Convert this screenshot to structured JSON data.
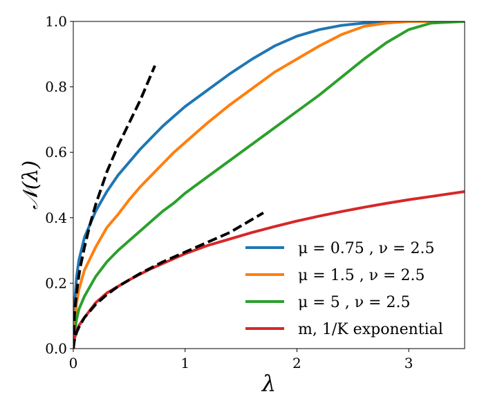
{
  "chart_data": {
    "type": "line",
    "title": "",
    "xlabel": "λ",
    "ylabel": "𝒩(λ)",
    "xlim": [
      0,
      3.5
    ],
    "ylim": [
      0,
      1.0
    ],
    "xticks": [
      0,
      1,
      2,
      3
    ],
    "xtick_labels": [
      "0",
      "1",
      "2",
      "3"
    ],
    "yticks": [
      0.0,
      0.2,
      0.4,
      0.6,
      0.8,
      1.0
    ],
    "ytick_labels": [
      "0.0",
      "0.2",
      "0.4",
      "0.6",
      "0.8",
      "1.0"
    ],
    "grid": false,
    "legend_position": "bottom-right",
    "series": [
      {
        "name": "μ = 0.75 , ν = 2.5",
        "color": "#1f77b4",
        "style": "solid",
        "x": [
          0,
          0.01,
          0.03,
          0.05,
          0.1,
          0.2,
          0.3,
          0.4,
          0.5,
          0.6,
          0.7,
          0.8,
          0.9,
          1.0,
          1.2,
          1.4,
          1.6,
          1.8,
          2.0,
          2.2,
          2.4,
          2.6,
          2.8,
          3.0,
          3.2,
          3.5
        ],
        "y": [
          0,
          0.13,
          0.22,
          0.27,
          0.34,
          0.42,
          0.48,
          0.53,
          0.57,
          0.61,
          0.645,
          0.68,
          0.71,
          0.74,
          0.79,
          0.84,
          0.885,
          0.925,
          0.955,
          0.975,
          0.988,
          0.995,
          0.998,
          1.0,
          1.0,
          1.0
        ]
      },
      {
        "name": "μ = 1.5 , ν = 2.5",
        "color": "#ff7f0e",
        "style": "solid",
        "x": [
          0,
          0.01,
          0.03,
          0.05,
          0.1,
          0.2,
          0.3,
          0.4,
          0.5,
          0.6,
          0.7,
          0.8,
          0.9,
          1.0,
          1.2,
          1.4,
          1.6,
          1.8,
          2.0,
          2.2,
          2.4,
          2.6,
          2.8,
          3.0,
          3.2,
          3.5
        ],
        "y": [
          0,
          0.08,
          0.14,
          0.18,
          0.24,
          0.31,
          0.37,
          0.41,
          0.455,
          0.495,
          0.53,
          0.565,
          0.6,
          0.63,
          0.69,
          0.745,
          0.795,
          0.845,
          0.885,
          0.925,
          0.96,
          0.985,
          0.995,
          1.0,
          1.0,
          1.0
        ]
      },
      {
        "name": "μ = 5 , ν = 2.5",
        "color": "#2ca02c",
        "style": "solid",
        "x": [
          0,
          0.01,
          0.03,
          0.05,
          0.1,
          0.2,
          0.3,
          0.4,
          0.5,
          0.6,
          0.7,
          0.8,
          0.9,
          1.0,
          1.2,
          1.4,
          1.6,
          1.8,
          2.0,
          2.2,
          2.4,
          2.6,
          2.8,
          3.0,
          3.2,
          3.5
        ],
        "y": [
          0,
          0.05,
          0.09,
          0.12,
          0.16,
          0.22,
          0.265,
          0.3,
          0.33,
          0.36,
          0.39,
          0.42,
          0.445,
          0.475,
          0.525,
          0.575,
          0.625,
          0.675,
          0.725,
          0.775,
          0.83,
          0.885,
          0.935,
          0.975,
          0.995,
          1.0
        ]
      },
      {
        "name": "m, 1/K exponential",
        "color": "#d62728",
        "style": "solid",
        "x": [
          0,
          0.01,
          0.03,
          0.05,
          0.1,
          0.2,
          0.3,
          0.4,
          0.5,
          0.6,
          0.7,
          0.8,
          0.9,
          1.0,
          1.2,
          1.4,
          1.6,
          1.8,
          2.0,
          2.2,
          2.4,
          2.6,
          2.8,
          3.0,
          3.2,
          3.5
        ],
        "y": [
          0,
          0.03,
          0.055,
          0.07,
          0.095,
          0.14,
          0.17,
          0.19,
          0.21,
          0.228,
          0.245,
          0.26,
          0.275,
          0.29,
          0.315,
          0.335,
          0.355,
          0.373,
          0.39,
          0.405,
          0.419,
          0.432,
          0.444,
          0.455,
          0.465,
          0.48
        ]
      },
      {
        "name": "",
        "color": "#000000",
        "style": "dashed",
        "x": [
          0,
          0.01,
          0.02,
          0.04,
          0.06,
          0.1,
          0.15,
          0.2,
          0.3,
          0.4,
          0.5,
          0.6,
          0.73
        ],
        "y": [
          0,
          0.1,
          0.14,
          0.2,
          0.245,
          0.31,
          0.38,
          0.44,
          0.54,
          0.62,
          0.69,
          0.76,
          0.865
        ]
      },
      {
        "name": "",
        "color": "#000000",
        "style": "dashed",
        "x": [
          0,
          0.01,
          0.03,
          0.05,
          0.1,
          0.2,
          0.3,
          0.4,
          0.5,
          0.6,
          0.8,
          1.0,
          1.2,
          1.4,
          1.7
        ],
        "y": [
          0,
          0.025,
          0.05,
          0.065,
          0.095,
          0.135,
          0.165,
          0.19,
          0.21,
          0.23,
          0.265,
          0.295,
          0.325,
          0.355,
          0.415
        ]
      }
    ]
  }
}
